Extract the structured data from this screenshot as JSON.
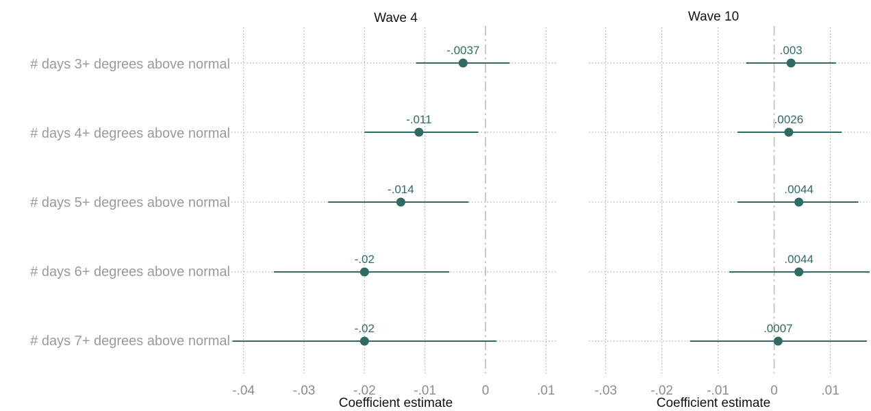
{
  "chart_data": [
    {
      "type": "scatter",
      "title": "Wave 4",
      "xlabel": "Coefficient estimate",
      "xlim": [
        -0.042,
        0.012
      ],
      "xticks": [
        -0.04,
        -0.03,
        -0.02,
        -0.01,
        0,
        0.01
      ],
      "xtick_labels": [
        "-.04",
        "-.03",
        "-.02",
        "-.01",
        "0",
        ".01"
      ],
      "reference_line": 0,
      "grid": true,
      "categories": [
        "# days 3+ degrees above normal",
        "# days 4+ degrees above normal",
        "# days 5+ degrees above normal",
        "# days 6+ degrees above normal",
        "# days 7+ degrees above normal"
      ],
      "estimates": [
        -0.0037,
        -0.011,
        -0.014,
        -0.02,
        -0.02
      ],
      "ci_low": [
        -0.0115,
        -0.02,
        -0.026,
        -0.035,
        -0.0418
      ],
      "ci_high": [
        0.004,
        -0.0012,
        -0.0028,
        -0.006,
        0.0018
      ],
      "labels": [
        "-.0037",
        "-.011",
        "-.014",
        "-.02",
        "-.02"
      ],
      "color": "#2f6b64"
    },
    {
      "type": "scatter",
      "title": "Wave 10",
      "xlabel": "Coefficient estimate",
      "xlim": [
        -0.033,
        0.017
      ],
      "xticks": [
        -0.03,
        -0.02,
        -0.01,
        0,
        0.01
      ],
      "xtick_labels": [
        "-.03",
        "-.02",
        "-.01",
        "0",
        ".01"
      ],
      "reference_line": 0,
      "grid": true,
      "categories": [
        "# days 3+ degrees above normal",
        "# days 4+ degrees above normal",
        "# days 5+ degrees above normal",
        "# days 6+ degrees above normal",
        "# days 7+ degrees above normal"
      ],
      "estimates": [
        0.003,
        0.0026,
        0.0044,
        0.0044,
        0.0007
      ],
      "ci_low": [
        -0.005,
        -0.0065,
        -0.0065,
        -0.008,
        -0.015
      ],
      "ci_high": [
        0.011,
        0.012,
        0.015,
        0.017,
        0.0165
      ],
      "labels": [
        ".003",
        ".0026",
        ".0044",
        ".0044",
        ".0007"
      ],
      "color": "#2f6b64"
    }
  ]
}
